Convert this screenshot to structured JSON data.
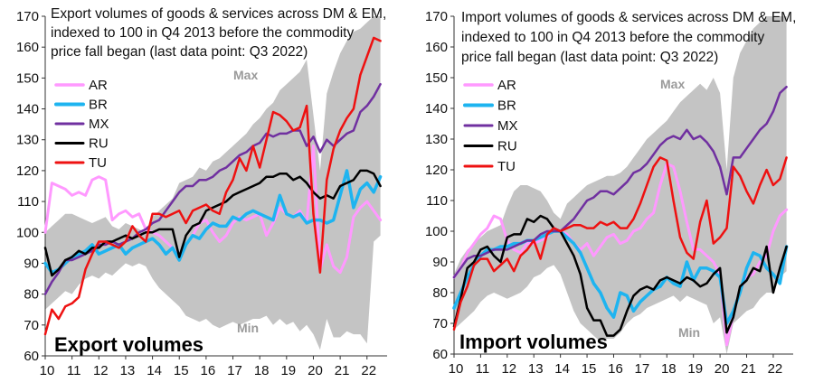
{
  "chart_data": [
    {
      "type": "line",
      "title": [
        "Export volumes of goods & services across DM & EM,",
        "indexed to 100 in Q4 2013 before the commodity",
        "price fall began (last data point: Q3 2022)"
      ],
      "panel_label": "Export volumes",
      "band_labels": {
        "max": "Max",
        "min": "Min"
      },
      "ylim": [
        60,
        170
      ],
      "yticks": [
        "60",
        "70",
        "80",
        "90",
        "100",
        "110",
        "120",
        "130",
        "140",
        "150",
        "160",
        "170"
      ],
      "xlim": [
        2010,
        2022.75
      ],
      "xticks": [
        "10",
        "11",
        "12",
        "13",
        "14",
        "15",
        "16",
        "17",
        "18",
        "19",
        "20",
        "21",
        "22"
      ],
      "x": [
        2010.0,
        2010.25,
        2010.5,
        2010.75,
        2011.0,
        2011.25,
        2011.5,
        2011.75,
        2012.0,
        2012.25,
        2012.5,
        2012.75,
        2013.0,
        2013.25,
        2013.5,
        2013.75,
        2014.0,
        2014.25,
        2014.5,
        2014.75,
        2015.0,
        2015.25,
        2015.5,
        2015.75,
        2016.0,
        2016.25,
        2016.5,
        2016.75,
        2017.0,
        2017.25,
        2017.5,
        2017.75,
        2018.0,
        2018.25,
        2018.5,
        2018.75,
        2019.0,
        2019.25,
        2019.5,
        2019.75,
        2020.0,
        2020.25,
        2020.5,
        2020.75,
        2021.0,
        2021.25,
        2021.5,
        2021.75,
        2022.0,
        2022.25,
        2022.5
      ],
      "band_max": [
        100,
        102,
        104,
        106,
        106,
        105,
        104,
        103,
        104,
        105,
        102,
        101,
        103,
        102,
        101,
        100,
        105,
        107,
        109,
        111,
        116,
        117,
        118,
        121,
        120,
        123,
        124,
        126,
        128,
        130,
        132,
        135,
        137,
        140,
        142,
        146,
        148,
        150,
        152,
        156,
        138,
        120,
        145,
        152,
        158,
        162,
        165,
        166,
        168,
        170,
        170
      ],
      "band_min": [
        75,
        77,
        79,
        81,
        80,
        83,
        85,
        86,
        85,
        87,
        86,
        88,
        90,
        89,
        90,
        89,
        85,
        82,
        80,
        78,
        76,
        73,
        72,
        71,
        72,
        70,
        69,
        70,
        71,
        70,
        71,
        72,
        72,
        73,
        70,
        72,
        70,
        71,
        68,
        70,
        67,
        62,
        72,
        66,
        66,
        68,
        67,
        67,
        64,
        97,
        99
      ],
      "series": [
        {
          "name": "AR",
          "color": "#ff99ff",
          "width": 3,
          "values": [
            100,
            116,
            115,
            114,
            112,
            113,
            112,
            117,
            118,
            117,
            104,
            106,
            107,
            105,
            106,
            101,
            100,
            99,
            97,
            95,
            92,
            96,
            99,
            103,
            104,
            100,
            97,
            99,
            103,
            105,
            104,
            105,
            106,
            99,
            103,
            108,
            106,
            105,
            107,
            103,
            128,
            88,
            96,
            89,
            87,
            92,
            105,
            108,
            110,
            107,
            104
          ]
        },
        {
          "name": "BR",
          "color": "#1eb4f0",
          "width": 3.5,
          "values": [
            90,
            87,
            88,
            90,
            92,
            93,
            94,
            96,
            93,
            94,
            95,
            96,
            93,
            95,
            96,
            97,
            98,
            96,
            93,
            95,
            91,
            96,
            99,
            98,
            101,
            103,
            102,
            102,
            105,
            104,
            106,
            107,
            106,
            105,
            104,
            112,
            106,
            105,
            106,
            103,
            104,
            104,
            103,
            104,
            112,
            120,
            108,
            114,
            116,
            113,
            118
          ]
        },
        {
          "name": "MX",
          "color": "#7030a0",
          "width": 2.5,
          "values": [
            80,
            84,
            87,
            91,
            91,
            92,
            93,
            94,
            96,
            96,
            97,
            96,
            97,
            98,
            100,
            101,
            103,
            104,
            107,
            110,
            113,
            115,
            115,
            117,
            117,
            118,
            120,
            121,
            123,
            125,
            126,
            128,
            129,
            132,
            131,
            132,
            132,
            133,
            133,
            128,
            131,
            126,
            130,
            128,
            130,
            132,
            133,
            139,
            141,
            144,
            148
          ]
        },
        {
          "name": "RU",
          "color": "#000000",
          "width": 2.5,
          "values": [
            95,
            86,
            88,
            91,
            92,
            94,
            93,
            95,
            95,
            97,
            97,
            98,
            99,
            98,
            99,
            100,
            100,
            101,
            101,
            101,
            92,
            99,
            102,
            103,
            107,
            108,
            109,
            110,
            112,
            113,
            114,
            115,
            116,
            118,
            118,
            119,
            119,
            117,
            118,
            116,
            113,
            111,
            112,
            111,
            115,
            116,
            117,
            120,
            120,
            119,
            115
          ]
        },
        {
          "name": "TU",
          "color": "#ee1111",
          "width": 2.5,
          "values": [
            67,
            75,
            72,
            76,
            77,
            79,
            88,
            93,
            97,
            97,
            96,
            95,
            97,
            102,
            99,
            97,
            106,
            106,
            105,
            106,
            107,
            103,
            107,
            108,
            109,
            107,
            106,
            113,
            117,
            124,
            120,
            128,
            121,
            130,
            139,
            138,
            136,
            133,
            134,
            141,
            106,
            87,
            117,
            127,
            133,
            137,
            140,
            151,
            157,
            163,
            162
          ]
        }
      ]
    },
    {
      "type": "line",
      "title": [
        "Import volumes of goods & services across DM & EM,",
        "indexed to 100 in Q4 2013 before the commodity",
        "price fall began (last data point: Q3 2022)"
      ],
      "panel_label": "Import volumes",
      "band_labels": {
        "max": "Max",
        "min": "Min"
      },
      "ylim": [
        60,
        170
      ],
      "yticks": [
        "60",
        "70",
        "80",
        "90",
        "100",
        "110",
        "120",
        "130",
        "140",
        "150",
        "160",
        "170"
      ],
      "xlim": [
        2010,
        2022.75
      ],
      "xticks": [
        "10",
        "11",
        "12",
        "13",
        "14",
        "15",
        "16",
        "17",
        "18",
        "19",
        "20",
        "21",
        "22"
      ],
      "x": [
        2010.0,
        2010.25,
        2010.5,
        2010.75,
        2011.0,
        2011.25,
        2011.5,
        2011.75,
        2012.0,
        2012.25,
        2012.5,
        2012.75,
        2013.0,
        2013.25,
        2013.5,
        2013.75,
        2014.0,
        2014.25,
        2014.5,
        2014.75,
        2015.0,
        2015.25,
        2015.5,
        2015.75,
        2016.0,
        2016.25,
        2016.5,
        2016.75,
        2017.0,
        2017.25,
        2017.5,
        2017.75,
        2018.0,
        2018.25,
        2018.5,
        2018.75,
        2019.0,
        2019.25,
        2019.5,
        2019.75,
        2020.0,
        2020.25,
        2020.5,
        2020.75,
        2021.0,
        2021.25,
        2021.5,
        2021.75,
        2022.0,
        2022.25,
        2022.5
      ],
      "band_max": [
        86,
        91,
        94,
        96,
        98,
        100,
        101,
        102,
        108,
        113,
        115,
        115,
        114,
        113,
        110,
        106,
        104,
        109,
        111,
        113,
        115,
        116,
        117,
        118,
        118,
        119,
        121,
        124,
        127,
        130,
        132,
        134,
        136,
        139,
        142,
        144,
        146,
        148,
        146,
        150,
        145,
        120,
        150,
        158,
        162,
        166,
        168,
        170,
        170,
        170,
        170
      ],
      "band_min": [
        68,
        70,
        72,
        74,
        77,
        79,
        80,
        79,
        78,
        79,
        80,
        82,
        85,
        86,
        88,
        89,
        86,
        80,
        74,
        70,
        68,
        66,
        64,
        65,
        65,
        67,
        70,
        72,
        73,
        75,
        76,
        77,
        78,
        79,
        77,
        79,
        78,
        77,
        76,
        70,
        72,
        60,
        70,
        72,
        74,
        75,
        78,
        80,
        80,
        85,
        87
      ],
      "series": [
        {
          "name": "AR",
          "color": "#ff99ff",
          "width": 3,
          "values": [
            85,
            88,
            93,
            96,
            99,
            101,
            105,
            104,
            97,
            94,
            93,
            96,
            96,
            97,
            98,
            101,
            100,
            99,
            96,
            94,
            96,
            92,
            95,
            98,
            99,
            96,
            97,
            100,
            101,
            104,
            106,
            115,
            122,
            121,
            113,
            103,
            94,
            94,
            92,
            90,
            86,
            63,
            73,
            81,
            85,
            86,
            90,
            92,
            100,
            105,
            107
          ]
        },
        {
          "name": "BR",
          "color": "#1eb4f0",
          "width": 3.5,
          "values": [
            75,
            80,
            85,
            89,
            92,
            94,
            94,
            95,
            95,
            96,
            96,
            97,
            97,
            98,
            99,
            100,
            100,
            98,
            96,
            93,
            88,
            83,
            80,
            75,
            72,
            80,
            79,
            74,
            77,
            79,
            81,
            82,
            85,
            83,
            82,
            90,
            84,
            88,
            88,
            87,
            85,
            70,
            74,
            80,
            88,
            93,
            92,
            88,
            86,
            83,
            95
          ]
        },
        {
          "name": "MX",
          "color": "#7030a0",
          "width": 2.5,
          "values": [
            85,
            88,
            91,
            92,
            92,
            93,
            94,
            94,
            94,
            95,
            96,
            97,
            97,
            99,
            100,
            100,
            100,
            102,
            104,
            107,
            110,
            111,
            113,
            113,
            112,
            114,
            116,
            119,
            120,
            122,
            125,
            128,
            130,
            131,
            130,
            133,
            130,
            131,
            129,
            126,
            121,
            112,
            124,
            124,
            127,
            130,
            133,
            135,
            139,
            145,
            147
          ]
        },
        {
          "name": "RU",
          "color": "#000000",
          "width": 2.5,
          "values": [
            69,
            78,
            88,
            90,
            94,
            95,
            92,
            90,
            98,
            99,
            99,
            104,
            103,
            105,
            104,
            101,
            100,
            96,
            92,
            86,
            75,
            71,
            71,
            66,
            66,
            68,
            74,
            79,
            81,
            82,
            81,
            84,
            85,
            84,
            83,
            85,
            84,
            82,
            83,
            86,
            88,
            67,
            72,
            82,
            84,
            88,
            87,
            95,
            80,
            88,
            95
          ]
        },
        {
          "name": "TU",
          "color": "#ee1111",
          "width": 2.5,
          "values": [
            68,
            77,
            82,
            89,
            91,
            91,
            87,
            89,
            91,
            87,
            92,
            94,
            97,
            91,
            99,
            101,
            100,
            101,
            102,
            102,
            101,
            101,
            103,
            102,
            103,
            101,
            101,
            104,
            109,
            115,
            121,
            124,
            123,
            110,
            98,
            93,
            91,
            103,
            110,
            96,
            98,
            101,
            121,
            118,
            113,
            109,
            115,
            120,
            115,
            117,
            124
          ]
        }
      ]
    }
  ]
}
